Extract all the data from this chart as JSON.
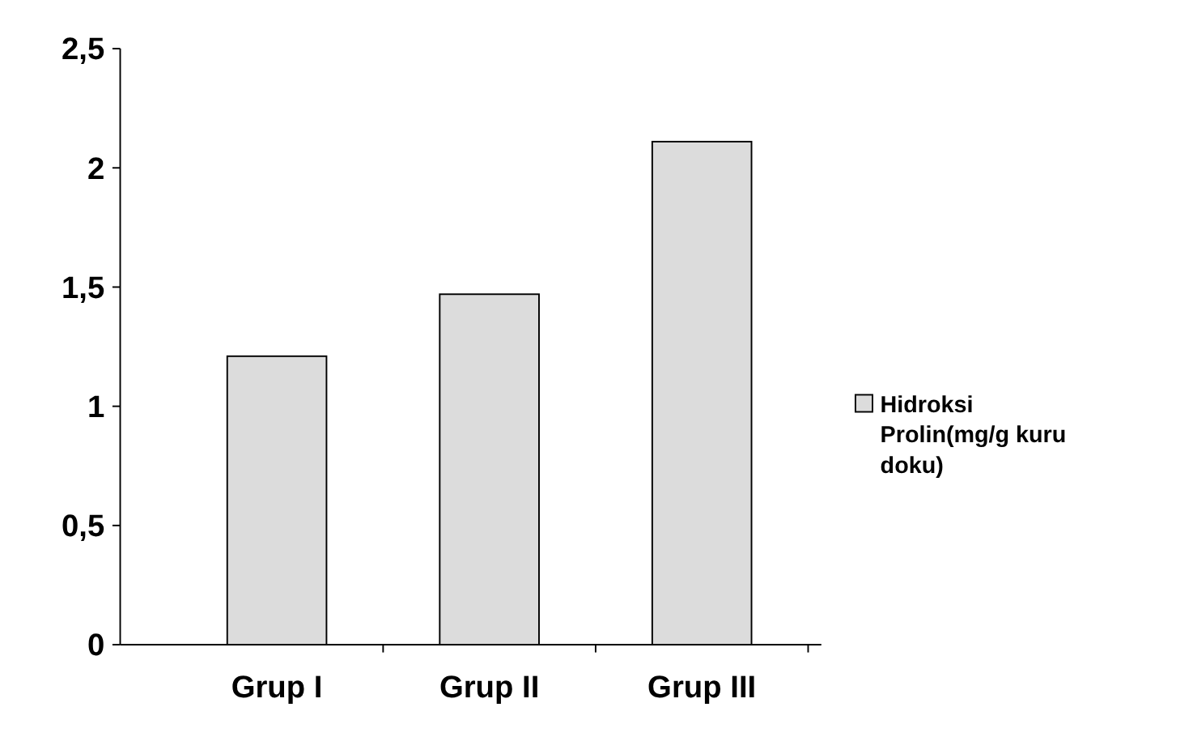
{
  "chart_data": {
    "type": "bar",
    "categories": [
      "Grup I",
      "Grup II",
      "Grup III"
    ],
    "series": [
      {
        "name": "Hidroksi Prolin(mg/g kuru doku)",
        "color": "#dcdcdc",
        "values": [
          1.21,
          1.47,
          2.11
        ]
      }
    ],
    "ylim": [
      0,
      2.5
    ],
    "yticks": [
      0,
      {
        "value": 0.5,
        "label": "0,5"
      },
      1,
      {
        "value": 1.5,
        "label": "1,5"
      },
      2,
      {
        "value": 2.5,
        "label": "2,5"
      }
    ],
    "grid": false,
    "legend": "right"
  }
}
